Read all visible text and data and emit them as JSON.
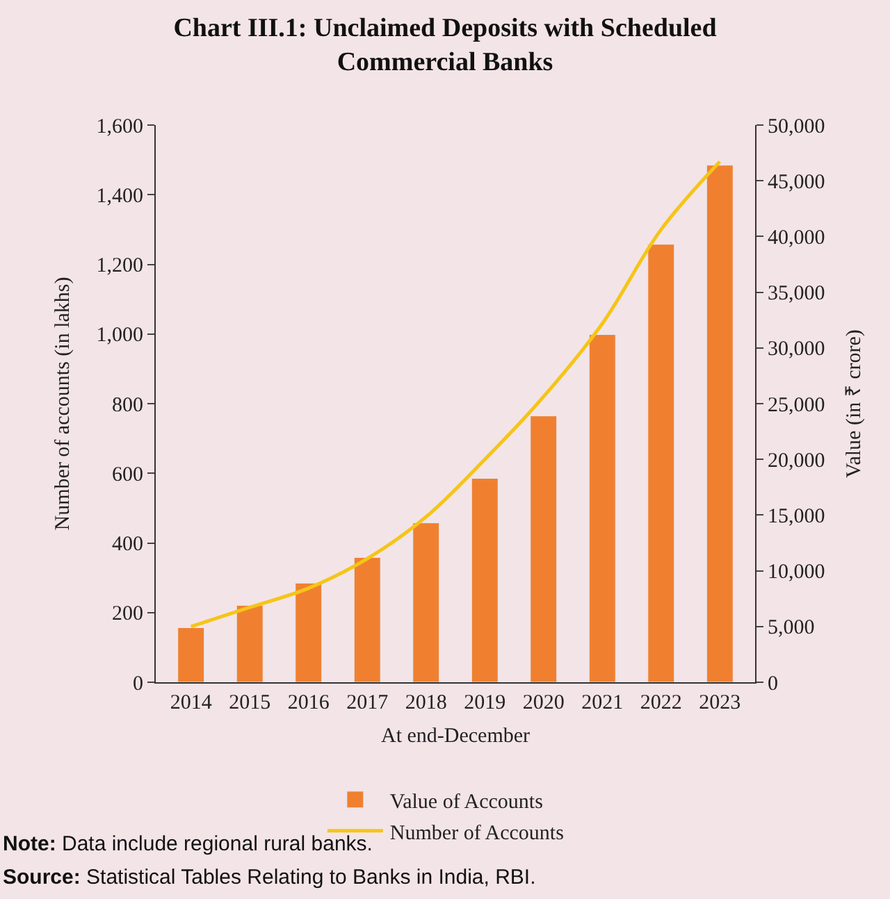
{
  "chart_data": {
    "type": "bar",
    "title": "Chart III.1: Unclaimed Deposits with Scheduled Commercial Banks",
    "xlabel": "At end-December",
    "ylabel": "Number of accounts (in lakhs)",
    "y2label": "Value (in ₹ crore)",
    "categories": [
      "2014",
      "2015",
      "2016",
      "2017",
      "2018",
      "2019",
      "2020",
      "2021",
      "2022",
      "2023"
    ],
    "series": [
      {
        "name": "Value of Accounts",
        "axis": "y2",
        "color": "#f08030",
        "values": [
          4900,
          6900,
          8900,
          11200,
          14300,
          18300,
          23900,
          31200,
          39300,
          46400
        ]
      },
      {
        "name": "Number of Accounts",
        "type": "line",
        "axis": "y",
        "color": "#f5c518",
        "values": [
          160,
          215,
          270,
          355,
          475,
          640,
          820,
          1030,
          1300,
          1495
        ]
      }
    ],
    "ylim": [
      0,
      1600
    ],
    "yticks": [
      0,
      200,
      400,
      600,
      800,
      {
        "value": 1000,
        "label": "1,000"
      },
      {
        "value": 1200,
        "label": "1,200"
      },
      {
        "value": 1400,
        "label": "1,400"
      },
      {
        "value": 1600,
        "label": "1,600"
      }
    ],
    "y2lim": [
      0,
      50000
    ],
    "y2ticks": [
      0,
      {
        "value": 5000,
        "label": "5,000"
      },
      {
        "value": 10000,
        "label": "10,000"
      },
      {
        "value": 15000,
        "label": "15,000"
      },
      {
        "value": 20000,
        "label": "20,000"
      },
      {
        "value": 25000,
        "label": "25,000"
      },
      {
        "value": 30000,
        "label": "30,000"
      },
      {
        "value": 35000,
        "label": "35,000"
      },
      {
        "value": 40000,
        "label": "40,000"
      },
      {
        "value": 45000,
        "label": "45,000"
      },
      {
        "value": 50000,
        "label": "50,000"
      }
    ],
    "grid": false,
    "legend": "bottom",
    "annotations": [
      "Note: Data include regional rural banks.",
      "Source: Statistical Tables Relating to Banks in India, RBI."
    ]
  }
}
